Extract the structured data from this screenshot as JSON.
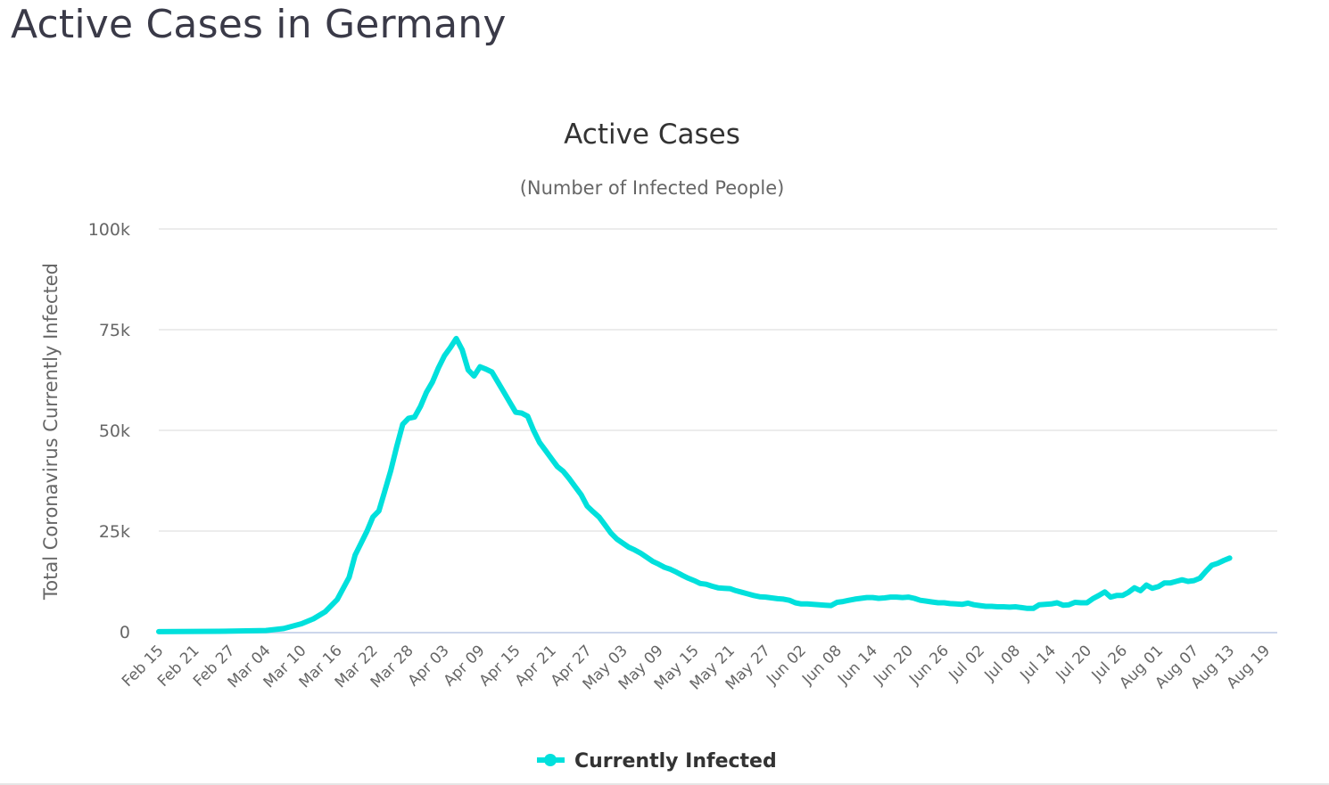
{
  "page": {
    "title": "Active Cases in Germany"
  },
  "chart_data": {
    "type": "line",
    "title": "Active Cases",
    "subtitle": "(Number of Infected People)",
    "xlabel": "",
    "ylabel": "Total Coronavirus Currently Infected",
    "ylim": [
      0,
      100000
    ],
    "yticks": [
      0,
      25000,
      50000,
      75000,
      100000
    ],
    "ytick_labels": [
      "0",
      "25k",
      "50k",
      "75k",
      "100k"
    ],
    "grid": true,
    "legend": "bottom-center",
    "start_date": "Feb 15",
    "end_date": "Aug 21",
    "x_tick_labels": [
      "Feb 15",
      "Feb 21",
      "Feb 27",
      "Mar 04",
      "Mar 10",
      "Mar 16",
      "Mar 22",
      "Mar 28",
      "Apr 03",
      "Apr 09",
      "Apr 15",
      "Apr 21",
      "Apr 27",
      "May 03",
      "May 09",
      "May 15",
      "May 21",
      "May 27",
      "Jun 02",
      "Jun 08",
      "Jun 14",
      "Jun 20",
      "Jun 26",
      "Jul 02",
      "Jul 08",
      "Jul 14",
      "Jul 20",
      "Jul 26",
      "Aug 01",
      "Aug 07",
      "Aug 13",
      "Aug 19"
    ],
    "x_tick_interval_days": 6,
    "series": [
      {
        "name": "Currently Infected",
        "color": "#00e0dc",
        "keypoints_day_value": [
          [
            0,
            16
          ],
          [
            10,
            100
          ],
          [
            18,
            300
          ],
          [
            21,
            800
          ],
          [
            24,
            2000
          ],
          [
            26,
            3200
          ],
          [
            28,
            5000
          ],
          [
            30,
            8000
          ],
          [
            32,
            13500
          ],
          [
            33,
            19000
          ],
          [
            34,
            22000
          ],
          [
            35,
            25000
          ],
          [
            36,
            28500
          ],
          [
            37,
            30000
          ],
          [
            38,
            35000
          ],
          [
            39,
            40000
          ],
          [
            40,
            46000
          ],
          [
            41,
            51500
          ],
          [
            42,
            53000
          ],
          [
            43,
            53300
          ],
          [
            44,
            56000
          ],
          [
            45,
            59500
          ],
          [
            46,
            62000
          ],
          [
            47,
            65500
          ],
          [
            48,
            68500
          ],
          [
            49,
            70500
          ],
          [
            50,
            72800
          ],
          [
            51,
            70000
          ],
          [
            52,
            65000
          ],
          [
            53,
            63500
          ],
          [
            54,
            65800
          ],
          [
            55,
            65200
          ],
          [
            56,
            64500
          ],
          [
            57,
            62000
          ],
          [
            58,
            59500
          ],
          [
            59,
            57000
          ],
          [
            60,
            54500
          ],
          [
            61,
            54300
          ],
          [
            62,
            53500
          ],
          [
            63,
            50000
          ],
          [
            64,
            47000
          ],
          [
            65,
            45000
          ],
          [
            66,
            43000
          ],
          [
            67,
            41000
          ],
          [
            68,
            39800
          ],
          [
            69,
            38000
          ],
          [
            70,
            36000
          ],
          [
            71,
            34000
          ],
          [
            72,
            31200
          ],
          [
            73,
            29800
          ],
          [
            74,
            28500
          ],
          [
            75,
            26500
          ],
          [
            76,
            24500
          ],
          [
            77,
            23000
          ],
          [
            78,
            22000
          ],
          [
            79,
            21000
          ],
          [
            80,
            20300
          ],
          [
            81,
            19500
          ],
          [
            82,
            18500
          ],
          [
            83,
            17500
          ],
          [
            84,
            16800
          ],
          [
            85,
            16000
          ],
          [
            86,
            15500
          ],
          [
            87,
            14800
          ],
          [
            88,
            14000
          ],
          [
            89,
            13300
          ],
          [
            90,
            12700
          ],
          [
            91,
            12000
          ],
          [
            92,
            11800
          ],
          [
            93,
            11300
          ],
          [
            94,
            10900
          ],
          [
            95,
            10800
          ],
          [
            96,
            10700
          ],
          [
            97,
            10200
          ],
          [
            98,
            9800
          ],
          [
            99,
            9400
          ],
          [
            100,
            9000
          ],
          [
            101,
            8700
          ],
          [
            102,
            8600
          ],
          [
            103,
            8400
          ],
          [
            104,
            8200
          ],
          [
            105,
            8100
          ],
          [
            106,
            7800
          ],
          [
            107,
            7200
          ],
          [
            108,
            6900
          ],
          [
            109,
            6900
          ],
          [
            110,
            6800
          ],
          [
            111,
            6700
          ],
          [
            112,
            6600
          ],
          [
            113,
            6500
          ],
          [
            114,
            7300
          ],
          [
            115,
            7500
          ],
          [
            116,
            7800
          ],
          [
            117,
            8100
          ],
          [
            118,
            8300
          ],
          [
            119,
            8500
          ],
          [
            120,
            8500
          ],
          [
            121,
            8300
          ],
          [
            122,
            8400
          ],
          [
            123,
            8600
          ],
          [
            124,
            8600
          ],
          [
            125,
            8500
          ],
          [
            126,
            8600
          ],
          [
            127,
            8300
          ],
          [
            128,
            7800
          ],
          [
            129,
            7600
          ],
          [
            130,
            7400
          ],
          [
            131,
            7200
          ],
          [
            132,
            7200
          ],
          [
            133,
            7000
          ],
          [
            134,
            6900
          ],
          [
            135,
            6800
          ],
          [
            136,
            7100
          ],
          [
            137,
            6700
          ],
          [
            138,
            6500
          ],
          [
            139,
            6300
          ],
          [
            140,
            6300
          ],
          [
            141,
            6200
          ],
          [
            142,
            6200
          ],
          [
            143,
            6100
          ],
          [
            144,
            6200
          ],
          [
            145,
            6000
          ],
          [
            146,
            5800
          ],
          [
            147,
            5800
          ],
          [
            148,
            6700
          ],
          [
            149,
            6800
          ],
          [
            150,
            6900
          ],
          [
            151,
            7200
          ],
          [
            152,
            6600
          ],
          [
            153,
            6700
          ],
          [
            154,
            7300
          ],
          [
            155,
            7200
          ],
          [
            156,
            7200
          ],
          [
            157,
            8200
          ],
          [
            158,
            9000
          ],
          [
            159,
            9900
          ],
          [
            160,
            8600
          ],
          [
            161,
            9000
          ],
          [
            162,
            9000
          ],
          [
            163,
            9800
          ],
          [
            164,
            10900
          ],
          [
            165,
            10200
          ],
          [
            166,
            11600
          ],
          [
            167,
            10800
          ],
          [
            168,
            11200
          ],
          [
            169,
            12100
          ],
          [
            170,
            12100
          ],
          [
            171,
            12500
          ],
          [
            172,
            12900
          ],
          [
            173,
            12500
          ],
          [
            174,
            12700
          ],
          [
            175,
            13300
          ],
          [
            176,
            15000
          ],
          [
            177,
            16500
          ],
          [
            178,
            17000
          ],
          [
            179,
            17700
          ],
          [
            180,
            18300
          ]
        ]
      }
    ]
  }
}
